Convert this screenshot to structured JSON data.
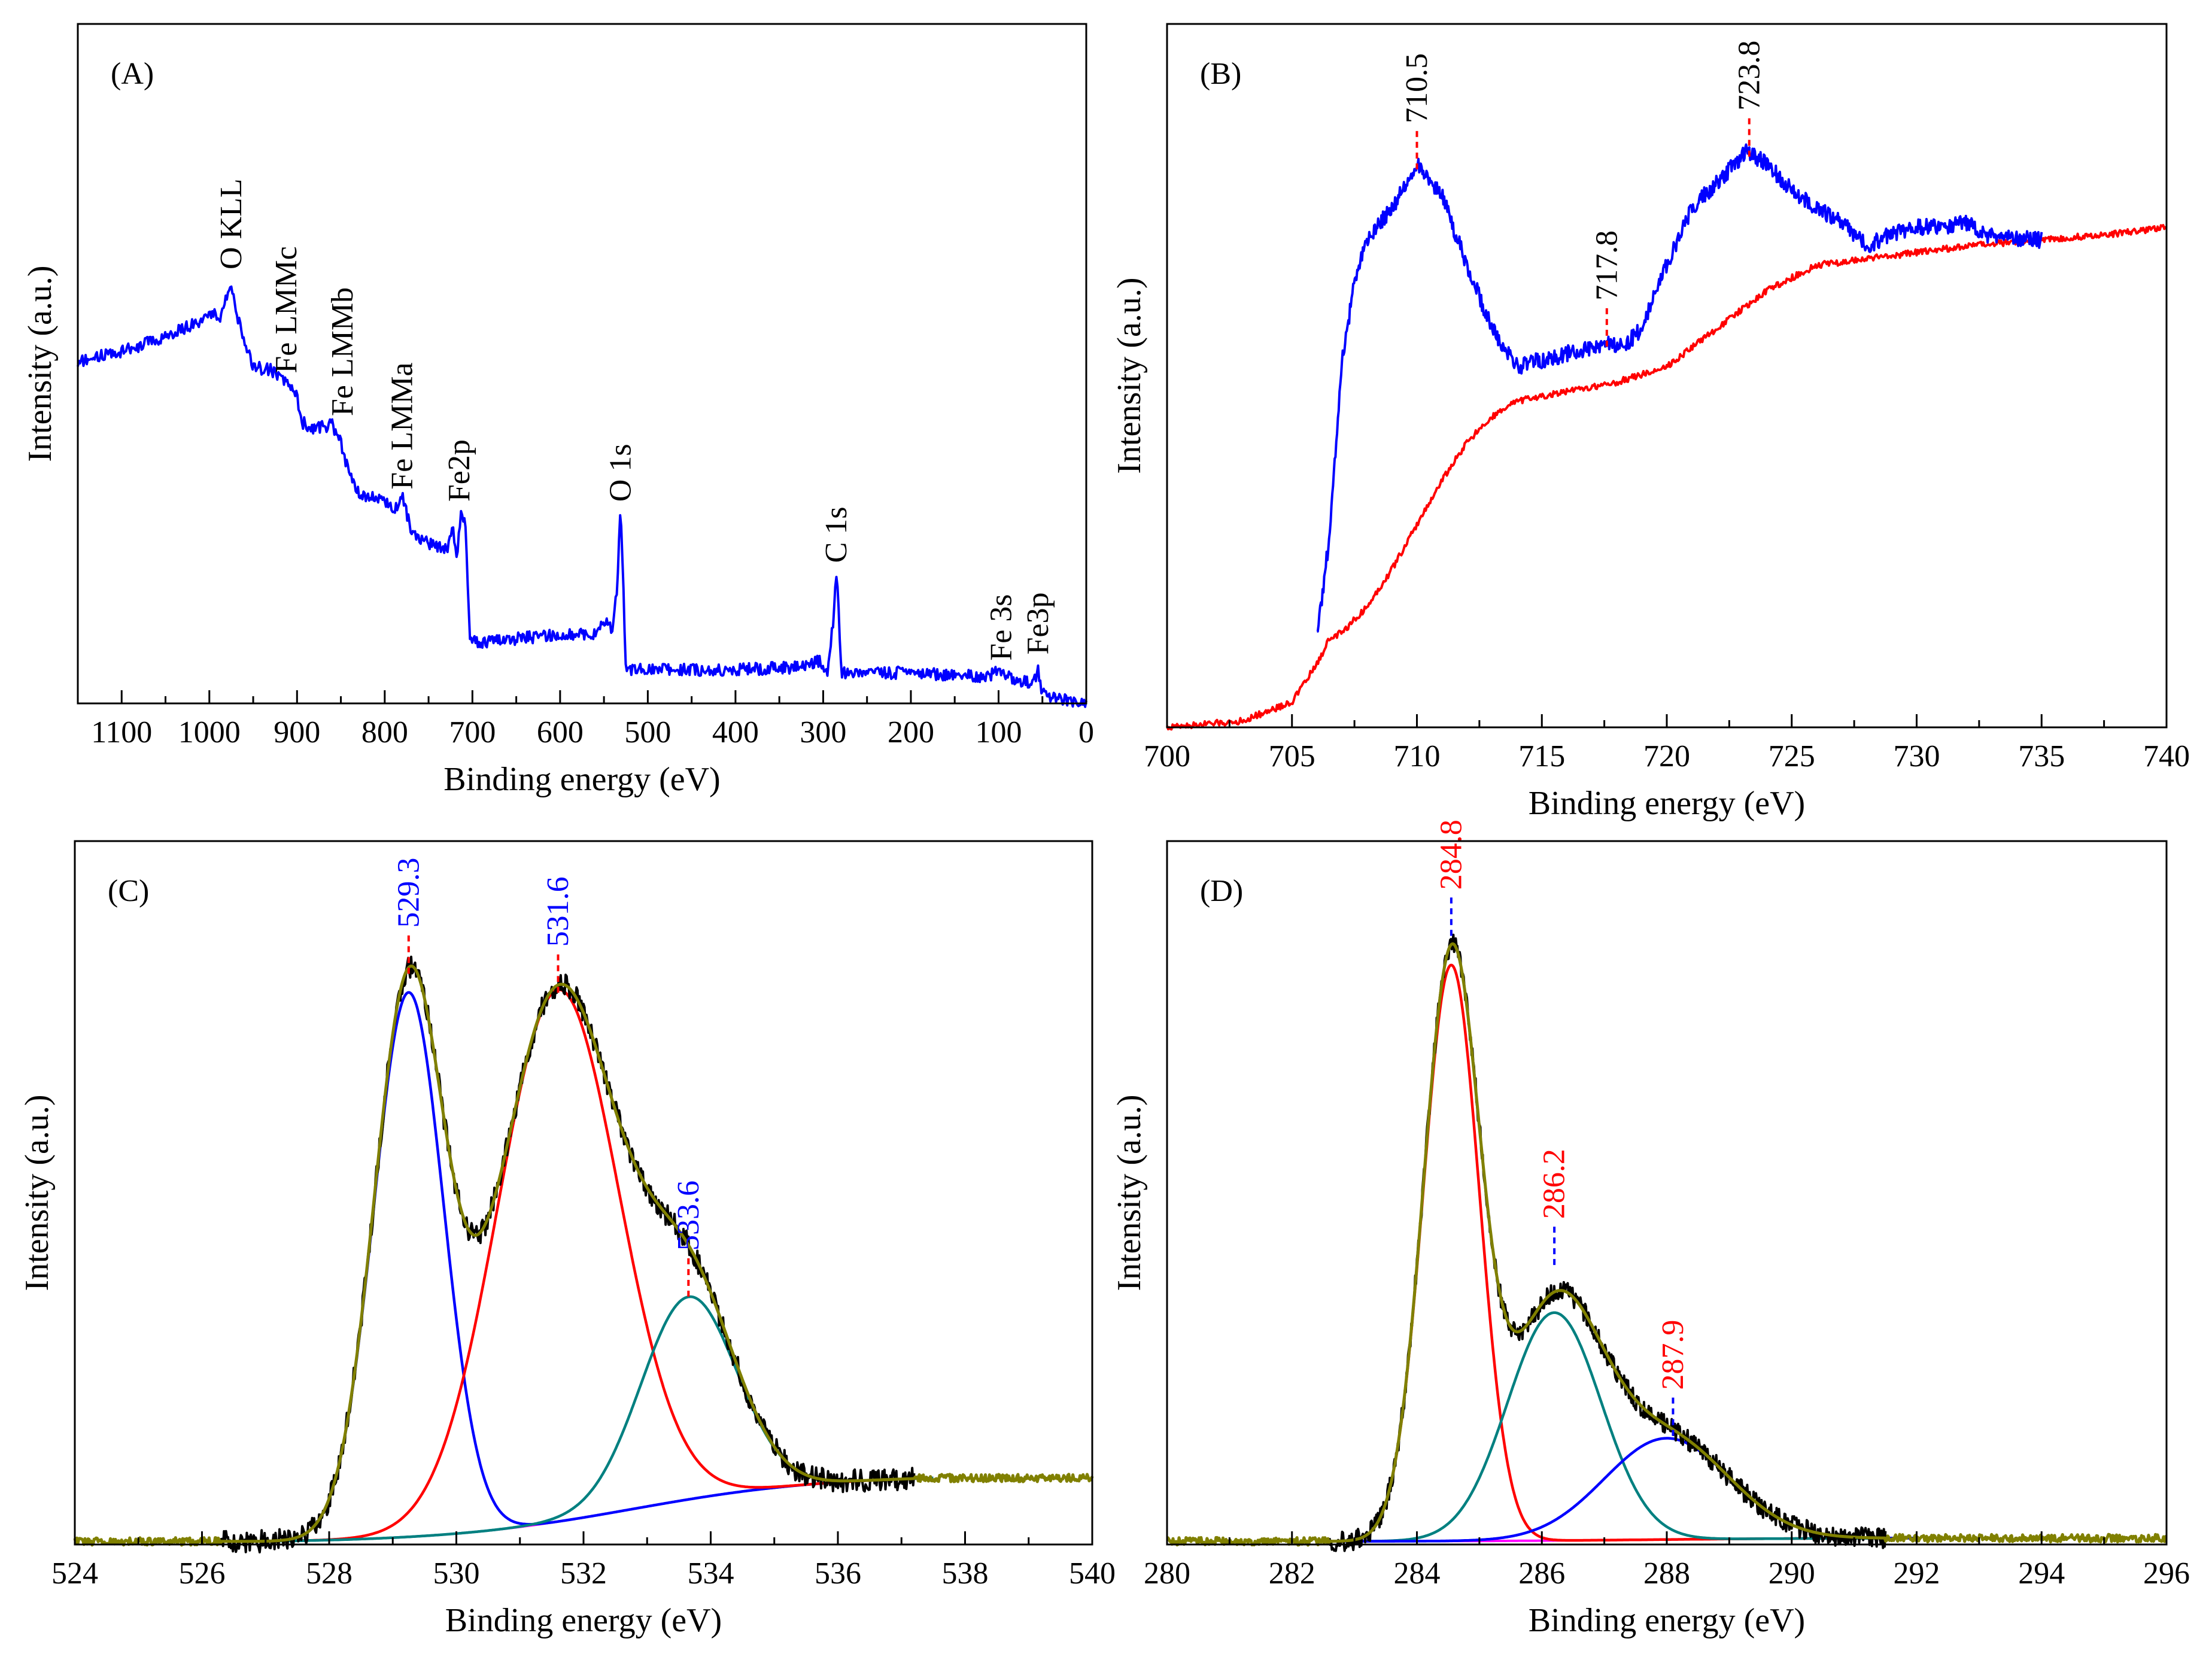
{
  "chart_data": [
    {
      "panel": "(A)",
      "type": "line",
      "xlabel": "Binding energy (eV)",
      "ylabel": "Intensity (a.u.)",
      "xlim": [
        1150,
        0
      ],
      "x_reversed": true,
      "xticks": [
        1100,
        1000,
        900,
        800,
        700,
        600,
        500,
        400,
        300,
        200,
        100,
        0
      ],
      "ylim": [
        0,
        100
      ],
      "y_ticklabels": false,
      "colors": {
        "survey": "#0000ff"
      },
      "series": [
        {
          "key": "survey",
          "color": "#0000ff",
          "noise": 1.0,
          "points": [
            [
              1150,
              56.0
            ],
            [
              1100,
              57.5
            ],
            [
              1050,
              60.0
            ],
            [
              1010,
              62.5
            ],
            [
              995,
              64.0
            ],
            [
              988,
              62.5
            ],
            [
              975,
              69.0
            ],
            [
              968,
              63.0
            ],
            [
              950,
              55.0
            ],
            [
              930,
              54.5
            ],
            [
              910,
              52.5
            ],
            [
              900,
              50.5
            ],
            [
              895,
              46.0
            ],
            [
              880,
              45.0
            ],
            [
              860,
              45.5
            ],
            [
              850,
              42.5
            ],
            [
              840,
              37.0
            ],
            [
              830,
              34.5
            ],
            [
              800,
              33.0
            ],
            [
              790,
              31.5
            ],
            [
              780,
              34.0
            ],
            [
              770,
              28.5
            ],
            [
              755,
              26.5
            ],
            [
              740,
              25.5
            ],
            [
              728,
              25.5
            ],
            [
              722,
              28.5
            ],
            [
              718,
              23.5
            ],
            [
              713,
              31.5
            ],
            [
              708,
              30.0
            ],
            [
              703,
              10.0
            ],
            [
              690,
              10.0
            ],
            [
              620,
              11.0
            ],
            [
              560,
              11.5
            ],
            [
              548,
              13.5
            ],
            [
              540,
              12.0
            ],
            [
              535,
              19.0
            ],
            [
              531,
              31.5
            ],
            [
              528,
              19.0
            ],
            [
              525,
              5.5
            ],
            [
              500,
              5.5
            ],
            [
              400,
              5.5
            ],
            [
              320,
              6.0
            ],
            [
              305,
              7.0
            ],
            [
              295,
              5.5
            ],
            [
              288,
              14.0
            ],
            [
              285,
              21.5
            ],
            [
              282,
              14.0
            ],
            [
              279,
              5.0
            ],
            [
              200,
              5.0
            ],
            [
              150,
              4.5
            ],
            [
              110,
              4.5
            ],
            [
              97,
              5.5
            ],
            [
              90,
              4.5
            ],
            [
              80,
              4.0
            ],
            [
              60,
              3.0
            ],
            [
              55,
              6.0
            ],
            [
              52,
              2.5
            ],
            [
              40,
              1.0
            ],
            [
              20,
              0.5
            ],
            [
              0,
              0.0
            ]
          ]
        }
      ],
      "labels": [
        {
          "text": "O KLL",
          "x": 975,
          "y": 70
        },
        {
          "text": "Fe LMMc",
          "x": 912,
          "y": 53
        },
        {
          "text": "Fe LMMb",
          "x": 848,
          "y": 46
        },
        {
          "text": "Fe LMMa",
          "x": 780,
          "y": 34
        },
        {
          "text": "Fe2p",
          "x": 715,
          "y": 32
        },
        {
          "text": "O 1s",
          "x": 531,
          "y": 32
        },
        {
          "text": "C 1s",
          "x": 285,
          "y": 22
        },
        {
          "text": "Fe 3s",
          "x": 97,
          "y": 6
        },
        {
          "text": "Fe3p",
          "x": 55,
          "y": 7
        }
      ]
    },
    {
      "panel": "(B)",
      "type": "line",
      "xlabel": "Binding energy (eV)",
      "ylabel": "Intensity (a.u.)",
      "xlim": [
        700,
        740
      ],
      "xticks": [
        700,
        705,
        710,
        715,
        720,
        725,
        730,
        735,
        740
      ],
      "ylim": [
        0,
        100
      ],
      "y_ticklabels": false,
      "colors": {
        "raw": "#0000ff",
        "background": "#ff0000"
      },
      "series": [
        {
          "key": "background",
          "color": "#ff0000",
          "noise": 0.5,
          "points": [
            [
              700,
              0.0
            ],
            [
              703,
              1.0
            ],
            [
              705,
              4.0
            ],
            [
              706,
              10.0
            ],
            [
              706.5,
              14.0
            ],
            [
              707,
              15.0
            ],
            [
              708,
              19.0
            ],
            [
              709,
              25.0
            ],
            [
              710,
              32.0
            ],
            [
              711,
              39.0
            ],
            [
              712,
              45.0
            ],
            [
              713,
              49.0
            ],
            [
              714,
              51.5
            ],
            [
              716,
              53.0
            ],
            [
              718,
              54.5
            ],
            [
              720,
              57.0
            ],
            [
              722,
              63.0
            ],
            [
              724,
              69.0
            ],
            [
              726,
              73.0
            ],
            [
              728,
              74.0
            ],
            [
              730,
              75.0
            ],
            [
              732,
              76.0
            ],
            [
              735,
              77.0
            ],
            [
              738,
              78.0
            ],
            [
              740,
              79.0
            ]
          ]
        },
        {
          "key": "raw",
          "color": "#0000ff",
          "noise": 1.3,
          "points": [
            [
              706,
              14.5
            ],
            [
              706.5,
              30.0
            ],
            [
              707,
              58.0
            ],
            [
              707.5,
              70.0
            ],
            [
              708,
              77.0
            ],
            [
              709,
              82.0
            ],
            [
              710,
              89.0
            ],
            [
              711,
              84.0
            ],
            [
              712,
              73.0
            ],
            [
              713,
              63.0
            ],
            [
              714,
              57.0
            ],
            [
              715,
              58.0
            ],
            [
              716,
              59.0
            ],
            [
              717,
              60.0
            ],
            [
              717.8,
              60.5
            ],
            [
              718.5,
              61.0
            ],
            [
              719,
              63.0
            ],
            [
              720,
              73.0
            ],
            [
              721,
              82.0
            ],
            [
              722,
              86.0
            ],
            [
              723.2,
              91.0
            ],
            [
              724,
              89.0
            ],
            [
              725,
              85.0
            ],
            [
              726,
              82.0
            ],
            [
              727,
              80.0
            ],
            [
              728,
              76.0
            ],
            [
              729,
              78.0
            ],
            [
              730,
              79.0
            ],
            [
              732,
              79.5
            ],
            [
              733,
              77.5
            ],
            [
              735,
              77.0
            ]
          ]
        }
      ],
      "peaks": [
        {
          "label": "710.5",
          "x": 710.0,
          "y": 89,
          "color": "#000000",
          "tick_color": "#ff0000"
        },
        {
          "label": "717.8",
          "x": 717.6,
          "y": 61,
          "color": "#000000",
          "tick_color": "#ff0000"
        },
        {
          "label": "723.8",
          "x": 723.3,
          "y": 91,
          "color": "#000000",
          "tick_color": "#ff0000"
        }
      ]
    },
    {
      "panel": "(C)",
      "type": "line",
      "xlabel": "Binding energy (eV)",
      "ylabel": "Intensity (a.u.)",
      "xlim": [
        524,
        540
      ],
      "xticks": [
        524,
        526,
        528,
        530,
        532,
        534,
        536,
        538,
        540
      ],
      "ylim": [
        0,
        100
      ],
      "y_ticklabels": false,
      "colors": {
        "raw": "#000000",
        "envelope": "#808000",
        "c1": "#0000ff",
        "c2": "#ff0000",
        "c3": "#008080",
        "background": "#ff00ff"
      },
      "background": {
        "key": "background",
        "color": "#ff00ff",
        "x0": 527.0,
        "x1": 537.5,
        "y0": 0.5,
        "y1": 10.5
      },
      "components": [
        {
          "key": "c1",
          "color": "#0000ff",
          "center": 529.25,
          "height": 86,
          "sigma": 0.55
        },
        {
          "key": "c2",
          "color": "#ff0000",
          "center": 531.6,
          "height": 84,
          "sigma": 0.95
        },
        {
          "key": "c3",
          "color": "#008080",
          "center": 533.65,
          "height": 32,
          "sigma": 0.75
        }
      ],
      "envelope": {
        "key": "envelope",
        "color": "#808000",
        "x0": 524.0,
        "x1": 540.0,
        "noise_outside": 0.6
      },
      "raw": {
        "key": "raw",
        "color": "#000000",
        "x0": 526.3,
        "x1": 537.2,
        "noise": 1.8
      },
      "peaks": [
        {
          "label": "529.3",
          "x": 529.25,
          "y": 91,
          "color": "#0000ff",
          "tick_color": "#ff0000"
        },
        {
          "label": "531.6",
          "x": 531.6,
          "y": 88,
          "color": "#0000ff",
          "tick_color": "#ff0000"
        },
        {
          "label": "533.6",
          "x": 533.65,
          "y": 40,
          "color": "#0000ff",
          "tick_color": "#ff0000"
        }
      ]
    },
    {
      "panel": "(D)",
      "type": "line",
      "xlabel": "Binding energy (eV)",
      "ylabel": "Intensity (a.u.)",
      "xlim": [
        280,
        296
      ],
      "xticks": [
        280,
        282,
        284,
        286,
        288,
        290,
        292,
        294,
        296
      ],
      "ylim": [
        0,
        100
      ],
      "y_ticklabels": false,
      "colors": {
        "raw": "#000000",
        "envelope": "#808000",
        "c1": "#ff0000",
        "c2": "#008080",
        "c3": "#0000ff",
        "background": "#ff00ff"
      },
      "background": {
        "key": "background",
        "color": "#ff00ff",
        "x0": 282.5,
        "x1": 292.0,
        "y0": 0.5,
        "y1": 1.0
      },
      "components": [
        {
          "key": "c1",
          "color": "#ff0000",
          "center": 284.55,
          "height": 91,
          "sigma": 0.45
        },
        {
          "key": "c2",
          "color": "#008080",
          "center": 286.2,
          "height": 36,
          "sigma": 0.75
        },
        {
          "key": "c3",
          "color": "#0000ff",
          "center": 288.0,
          "height": 16,
          "sigma": 1.0
        }
      ],
      "envelope": {
        "key": "envelope",
        "color": "#808000",
        "x0": 280.0,
        "x1": 296.0,
        "noise_outside": 0.6
      },
      "raw": {
        "key": "raw",
        "color": "#000000",
        "x0": 282.6,
        "x1": 291.5,
        "noise": 1.6
      },
      "peaks": [
        {
          "label": "284.8",
          "x": 284.55,
          "y": 97,
          "color": "#ff0000",
          "tick_color": "#0000ff"
        },
        {
          "label": "286.2",
          "x": 286.2,
          "y": 45,
          "color": "#ff0000",
          "tick_color": "#0000ff"
        },
        {
          "label": "287.9",
          "x": 288.1,
          "y": 18,
          "color": "#ff0000",
          "tick_color": "#0000ff"
        }
      ]
    }
  ]
}
